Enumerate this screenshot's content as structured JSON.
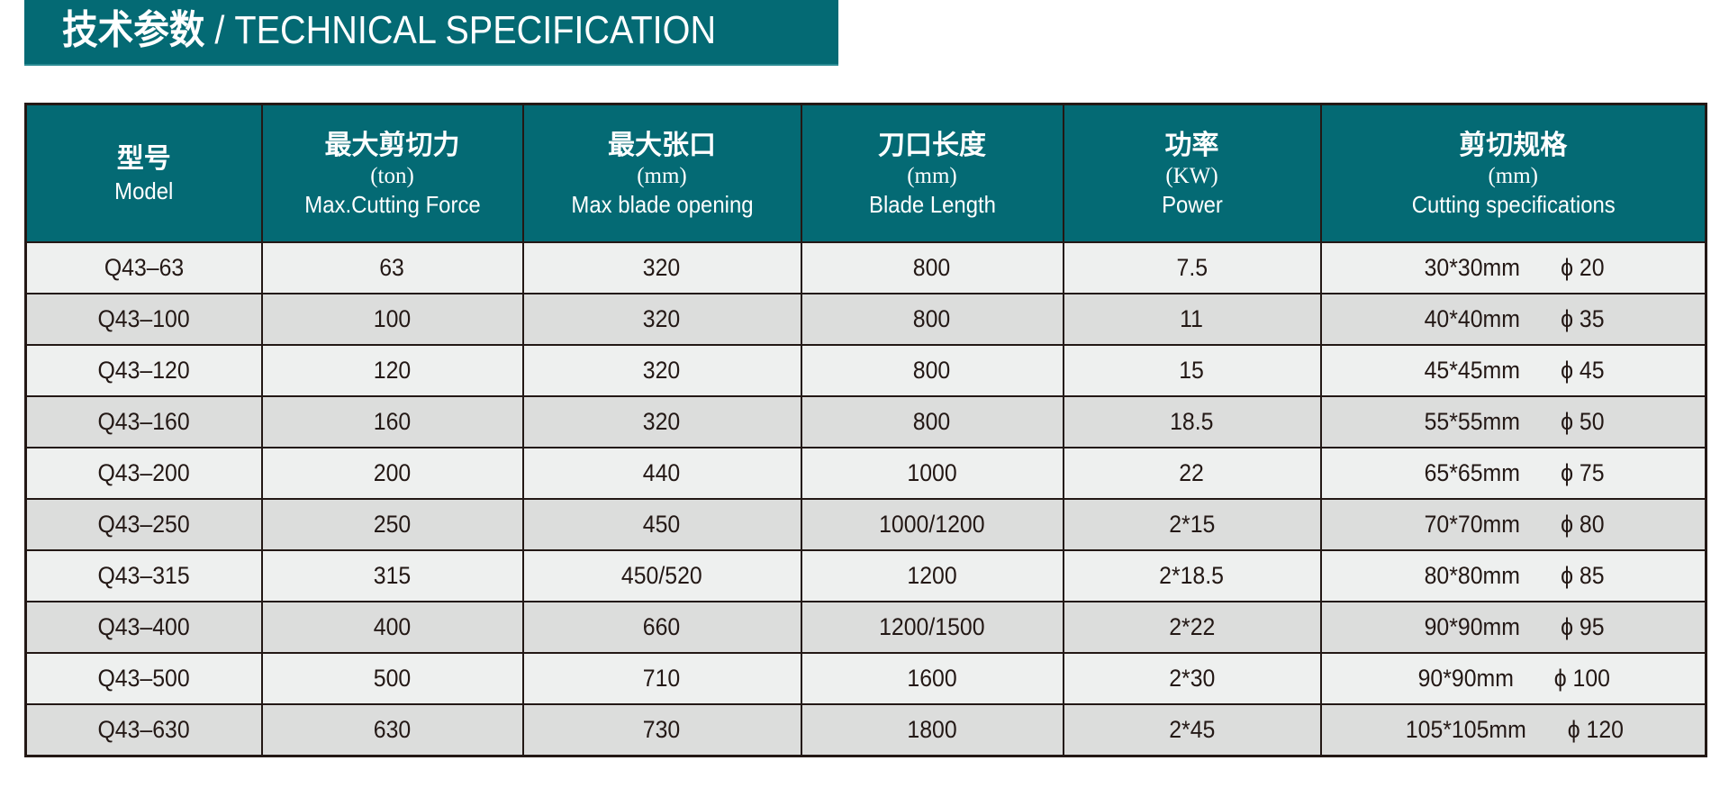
{
  "title": {
    "cn": "技术参数",
    "sep": " / ",
    "en": "TECHNICAL SPECIFICATION"
  },
  "colors": {
    "header": "#046a74",
    "row_light": "#eef0ef",
    "row_dark": "#dcdddc",
    "border": "#231815"
  },
  "columns": [
    {
      "cn": "型号",
      "unit": "",
      "en": "Model"
    },
    {
      "cn": "最大剪切力",
      "unit": "(ton)",
      "en": "Max.Cutting Force"
    },
    {
      "cn": "最大张口",
      "unit": "(mm)",
      "en": "Max blade opening"
    },
    {
      "cn": "刀口长度",
      "unit": "(mm)",
      "en": "Blade Length"
    },
    {
      "cn": "功率",
      "unit": "(KW)",
      "en": "Power"
    },
    {
      "cn": "剪切规格",
      "unit": "(mm)",
      "en": "Cutting specifications"
    }
  ],
  "rows": [
    {
      "model": "Q43–63",
      "force": "63",
      "opening": "320",
      "blade": "800",
      "power": "7.5",
      "spec": "30*30mm",
      "dia": "ϕ 20"
    },
    {
      "model": "Q43–100",
      "force": "100",
      "opening": "320",
      "blade": "800",
      "power": "11",
      "spec": "40*40mm",
      "dia": "ϕ 35"
    },
    {
      "model": "Q43–120",
      "force": "120",
      "opening": "320",
      "blade": "800",
      "power": "15",
      "spec": "45*45mm",
      "dia": "ϕ 45"
    },
    {
      "model": "Q43–160",
      "force": "160",
      "opening": "320",
      "blade": "800",
      "power": "18.5",
      "spec": "55*55mm",
      "dia": "ϕ 50"
    },
    {
      "model": "Q43–200",
      "force": "200",
      "opening": "440",
      "blade": "1000",
      "power": "22",
      "spec": "65*65mm",
      "dia": "ϕ 75"
    },
    {
      "model": "Q43–250",
      "force": "250",
      "opening": "450",
      "blade": "1000/1200",
      "power": "2*15",
      "spec": "70*70mm",
      "dia": "ϕ 80"
    },
    {
      "model": "Q43–315",
      "force": "315",
      "opening": "450/520",
      "blade": "1200",
      "power": "2*18.5",
      "spec": "80*80mm",
      "dia": "ϕ 85"
    },
    {
      "model": "Q43–400",
      "force": "400",
      "opening": "660",
      "blade": "1200/1500",
      "power": "2*22",
      "spec": "90*90mm",
      "dia": "ϕ 95"
    },
    {
      "model": "Q43–500",
      "force": "500",
      "opening": "710",
      "blade": "1600",
      "power": "2*30",
      "spec": "90*90mm",
      "dia": "ϕ 100"
    },
    {
      "model": "Q43–630",
      "force": "630",
      "opening": "730",
      "blade": "1800",
      "power": "2*45",
      "spec": "105*105mm",
      "dia": "ϕ 120"
    }
  ]
}
